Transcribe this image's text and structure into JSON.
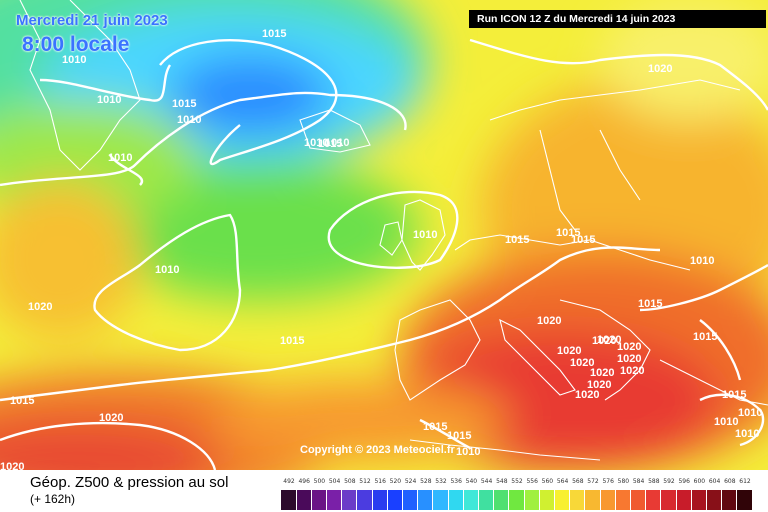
{
  "header": {
    "date_title": "Mercredi 21 juin 2023",
    "time_title": "8:00 locale",
    "run_info": "Run ICON 12 Z du Mercredi 14 juin 2023"
  },
  "footer": {
    "parameter_title": "Géop. Z500 & pression au sol",
    "lead_time": "(+ 162h)",
    "copyright": "Copyright © 2023 Meteociel.fr"
  },
  "legend": {
    "ticks": [
      "492",
      "496",
      "500",
      "504",
      "508",
      "512",
      "516",
      "520",
      "524",
      "528",
      "532",
      "536",
      "540",
      "544",
      "548",
      "552",
      "556",
      "560",
      "564",
      "568",
      "572",
      "576",
      "580",
      "584",
      "588",
      "592",
      "596",
      "600",
      "604",
      "608",
      "612"
    ],
    "colors": [
      "#2c0a2c",
      "#4a0a5a",
      "#6a1486",
      "#7a20a8",
      "#6b3cc8",
      "#4b3ce0",
      "#2a3cf0",
      "#1a40ff",
      "#2060ff",
      "#2890ff",
      "#30b8ff",
      "#30d8f0",
      "#40e8d8",
      "#40e0a0",
      "#50e070",
      "#70e840",
      "#a0f040",
      "#d0f030",
      "#f8f030",
      "#f8d838",
      "#f8b830",
      "#f89830",
      "#f87830",
      "#f05a30",
      "#e83a34",
      "#d82a30",
      "#c81c2a",
      "#a81420",
      "#881018",
      "#600810",
      "#300408"
    ]
  },
  "isobar_labels": [
    "1015",
    "1010",
    "1015",
    "1010",
    "1010",
    "1015",
    "1010",
    "1015",
    "1010",
    "1020",
    "1010",
    "1015",
    "1015",
    "1010",
    "1020",
    "1015",
    "1015",
    "1015",
    "1020",
    "1020",
    "1020",
    "1020",
    "1020",
    "1020",
    "1020",
    "1020",
    "1020",
    "1020",
    "1020",
    "1015",
    "1015",
    "1010",
    "1010",
    "1020",
    "1020",
    "1015",
    "1010",
    "1015",
    "1010",
    "1010",
    "1010"
  ],
  "palette": {
    "cyan": "#4cd6ff",
    "blue_low": "#2b8cff",
    "green": "#66e04e",
    "yellow": "#f6f23a",
    "orange": "#f7a72e",
    "red": "#f03c2c",
    "isobar": "#ffffff",
    "coast": "#ffffff"
  }
}
